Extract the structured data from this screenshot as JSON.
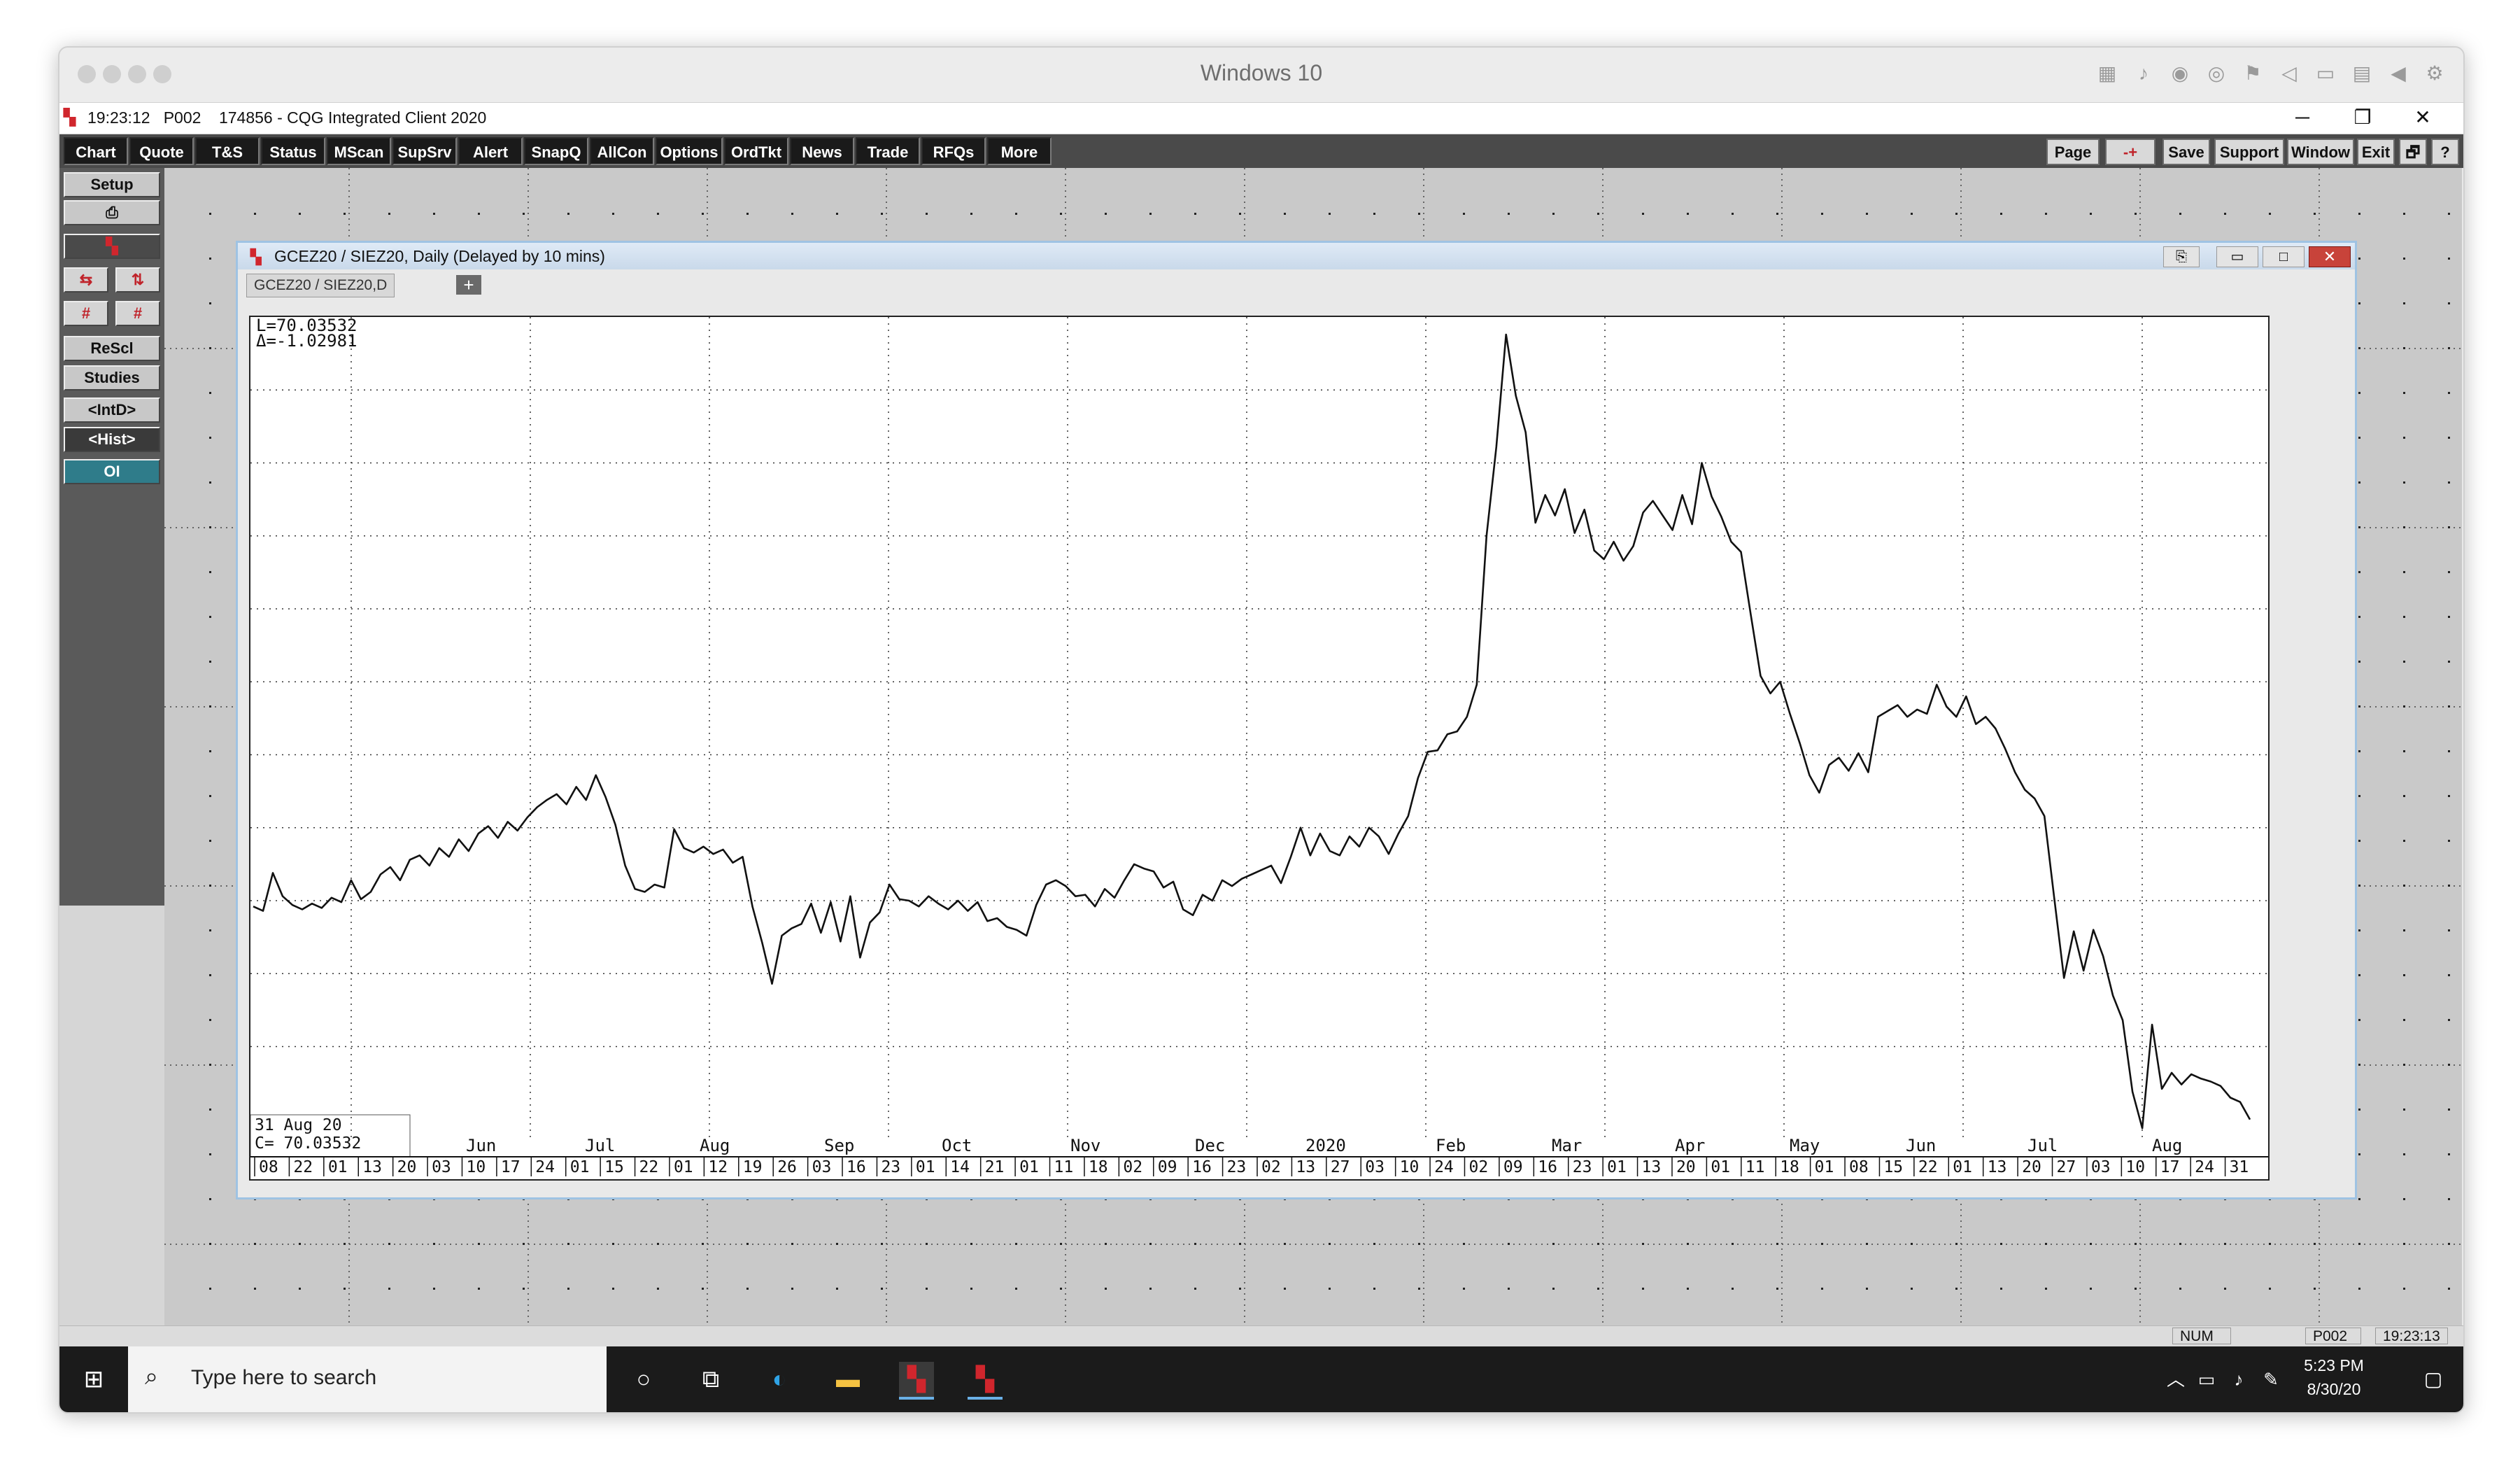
{
  "vm": {
    "title": "Windows 10"
  },
  "app": {
    "title": "19:23:12   P002    174856 - CQG Integrated Client 2020",
    "minimize_label": "─",
    "restore_label": "❐",
    "close_label": "✕"
  },
  "toolbar": {
    "left_buttons": [
      "Chart",
      "Quote",
      "T&S",
      "Status",
      "MScan",
      "SupSrv",
      "Alert",
      "SnapQ",
      "AllCon",
      "Options",
      "OrdTkt",
      "News",
      "Trade",
      "RFQs",
      "More"
    ],
    "right_buttons": [
      "Page",
      "-+",
      "Save",
      "Support",
      "Window",
      "Exit",
      "🗗",
      "?"
    ]
  },
  "leftpanel": {
    "setup": "Setup",
    "rescl": "ReScl",
    "studies": "Studies",
    "intd": "<IntD>",
    "hist": "<Hist>",
    "oi": "OI"
  },
  "chartwindow": {
    "title": "GCEZ20 / SIEZ20, Daily (Delayed by 10 mins)",
    "tab": "GCEZ20 / SIEZ20,D",
    "tab_add": "+",
    "readout_l": "L=70.03532",
    "readout_d": "Δ=-1.02981",
    "cursor_date": "31  Aug  20",
    "cursor_close": "C=     70.03532",
    "last_price": "70.04"
  },
  "statusbar": {
    "num": "NUM",
    "page": "P002",
    "time": "19:23:13"
  },
  "taskbar": {
    "search_placeholder": "Type here to search",
    "time": "5:23 PM",
    "date": "8/30/20"
  },
  "accent": {
    "line": "#111111",
    "last_price_bg": "#000000",
    "toolbar_bg": "#1a1a1a"
  },
  "chart_data": {
    "type": "line",
    "title": "GCEZ20 / SIEZ20, Daily (Delayed by 10 mins)",
    "ylim": [
      68.5,
      125
    ],
    "y_ticks": [
      "120.00",
      "115.00",
      "110.00",
      "105.00",
      "100.00",
      "95.00",
      "90.00",
      "85.00",
      "80.00",
      "75.00"
    ],
    "y_tick_values": [
      120,
      115,
      110,
      105,
      100,
      95,
      90,
      85,
      80,
      75
    ],
    "month_labels": [
      "Jun",
      "Jul",
      "Aug",
      "Sep",
      "Oct",
      "Nov",
      "Dec",
      "2020",
      "Feb",
      "Mar",
      "Apr",
      "May",
      "Jun",
      "Jul",
      "Aug"
    ],
    "day_labels": [
      "08",
      "22",
      "01",
      "13",
      "20",
      "03",
      "10",
      "17",
      "24",
      "01",
      "15",
      "22",
      "01",
      "12",
      "19",
      "26",
      "03",
      "16",
      "23",
      "01",
      "14",
      "21",
      "01",
      "11",
      "18",
      "02",
      "09",
      "16",
      "23",
      "02",
      "13",
      "27",
      "03",
      "10",
      "24",
      "02",
      "09",
      "16",
      "23",
      "01",
      "13",
      "20",
      "01",
      "11",
      "18",
      "01",
      "08",
      "15",
      "22",
      "01",
      "13",
      "20",
      "27",
      "03",
      "10",
      "17",
      "24",
      "31"
    ],
    "series": [
      {
        "values": [
          84.6,
          84.3,
          86.9,
          85.3,
          84.7,
          84.4,
          84.8,
          84.5,
          85.2,
          84.9,
          86.4,
          85.1,
          85.6,
          86.8,
          87.3,
          86.4,
          87.8,
          88.1,
          87.4,
          88.6,
          88.0,
          89.2,
          88.4,
          89.6,
          90.1,
          89.3,
          90.4,
          89.8,
          90.7,
          91.4,
          91.9,
          92.3,
          91.6,
          92.8,
          91.9,
          93.6,
          92.1,
          90.2,
          87.4,
          85.8,
          85.6,
          86.1,
          85.9,
          89.9,
          88.6,
          88.3,
          88.7,
          88.2,
          88.5,
          87.6,
          88.0,
          84.6,
          82.1,
          79.3,
          82.6,
          83.1,
          83.4,
          84.8,
          82.8,
          84.9,
          82.2,
          85.3,
          81.1,
          83.5,
          84.2,
          86.1,
          85.1,
          85.0,
          84.6,
          85.3,
          84.8,
          84.4,
          85.0,
          84.3,
          84.9,
          83.6,
          83.8,
          83.2,
          83.0,
          82.6,
          84.7,
          86.1,
          86.4,
          86.0,
          85.3,
          85.4,
          84.6,
          85.8,
          85.2,
          86.4,
          87.5,
          87.2,
          87.0,
          85.9,
          86.3,
          84.4,
          84.0,
          85.4,
          85.0,
          86.4,
          86.0,
          86.5,
          86.8,
          87.1,
          87.4,
          86.2,
          88.0,
          90.0,
          88.1,
          89.6,
          88.4,
          88.1,
          89.4,
          88.7,
          90.0,
          89.4,
          88.2,
          89.6,
          90.8,
          93.4,
          95.2,
          95.3,
          96.4,
          96.6,
          97.6,
          99.8,
          110.0,
          116.1,
          123.8,
          119.6,
          117.1,
          110.9,
          112.8,
          111.4,
          113.2,
          110.2,
          111.8,
          109.0,
          108.4,
          109.6,
          108.3,
          109.3,
          111.6,
          112.4,
          111.4,
          110.4,
          112.8,
          110.8,
          115.0,
          112.7,
          111.3,
          109.6,
          108.9,
          104.6,
          100.4,
          99.2,
          100.0,
          97.8,
          95.8,
          93.6,
          92.4,
          94.3,
          94.8,
          93.9,
          95.1,
          93.8,
          97.6,
          98.0,
          98.4,
          97.6,
          98.1,
          97.8,
          99.8,
          98.3,
          97.6,
          99.0,
          97.1,
          97.6,
          96.8,
          95.4,
          93.8,
          92.6,
          92.0,
          90.8,
          85.2,
          79.7,
          82.9,
          80.2,
          83.0,
          81.2,
          78.5,
          76.8,
          71.9,
          69.4,
          76.5,
          72.1,
          73.2,
          72.4,
          73.1,
          72.8,
          72.6,
          72.3,
          71.5,
          71.2,
          70.0
        ]
      }
    ]
  }
}
